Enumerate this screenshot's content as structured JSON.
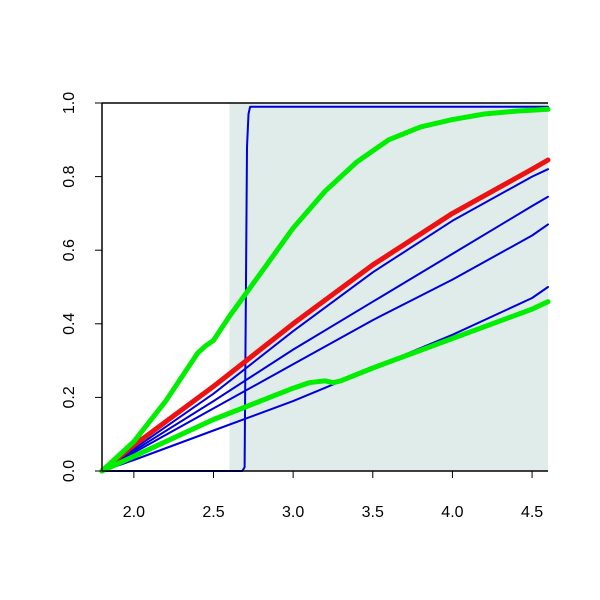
{
  "chart_data": {
    "type": "line",
    "title": "",
    "xlabel": "",
    "ylabel": "",
    "xlim": [
      1.8,
      4.6
    ],
    "ylim": [
      0.0,
      1.0
    ],
    "x_ticks": [
      "2.0",
      "2.5",
      "3.0",
      "3.5",
      "4.0",
      "4.5"
    ],
    "y_ticks": [
      "0.0",
      "0.2",
      "0.4",
      "0.6",
      "0.8",
      "1.0"
    ],
    "grid": false,
    "legend": "none",
    "shaded_region": {
      "x": [
        2.6,
        4.6
      ],
      "color": "#e0ecea"
    },
    "series": [
      {
        "color": "#0000dd",
        "width": "thin",
        "x": [
          1.8,
          2.68,
          2.695,
          2.7,
          2.71,
          2.72,
          2.73,
          4.6
        ],
        "y": [
          0.0,
          0.0,
          0.01,
          0.3,
          0.88,
          0.97,
          0.99,
          0.99
        ]
      },
      {
        "color": "#0000dd",
        "width": "thin",
        "x": [
          1.8,
          2.0,
          2.5,
          3.0,
          3.5,
          4.0,
          4.5,
          4.6
        ],
        "y": [
          0.0,
          0.06,
          0.21,
          0.38,
          0.54,
          0.68,
          0.8,
          0.82
        ]
      },
      {
        "color": "#0000dd",
        "width": "thin",
        "x": [
          1.8,
          2.0,
          2.5,
          3.0,
          3.5,
          4.0,
          4.5,
          4.6
        ],
        "y": [
          0.0,
          0.055,
          0.19,
          0.33,
          0.46,
          0.59,
          0.72,
          0.745
        ]
      },
      {
        "color": "#0000dd",
        "width": "thin",
        "x": [
          1.8,
          2.0,
          2.5,
          3.0,
          3.5,
          4.0,
          4.5,
          4.6
        ],
        "y": [
          0.0,
          0.05,
          0.17,
          0.29,
          0.41,
          0.52,
          0.64,
          0.67
        ]
      },
      {
        "color": "#0000dd",
        "width": "thin",
        "x": [
          1.8,
          2.0,
          2.5,
          3.0,
          3.5,
          4.0,
          4.5,
          4.6
        ],
        "y": [
          0.0,
          0.03,
          0.11,
          0.19,
          0.28,
          0.37,
          0.47,
          0.5
        ]
      },
      {
        "color": "#ee1111",
        "width": "thick",
        "x": [
          1.8,
          2.0,
          2.5,
          3.0,
          3.5,
          4.0,
          4.5,
          4.6
        ],
        "y": [
          0.0,
          0.07,
          0.23,
          0.4,
          0.56,
          0.7,
          0.82,
          0.845
        ]
      },
      {
        "color": "#00ee00",
        "width": "thick",
        "x": [
          1.8,
          2.0,
          2.2,
          2.4,
          2.45,
          2.5,
          2.6,
          2.8,
          3.0,
          3.2,
          3.4,
          3.6,
          3.8,
          4.0,
          4.2,
          4.4,
          4.6
        ],
        "y": [
          0.0,
          0.08,
          0.19,
          0.32,
          0.34,
          0.355,
          0.42,
          0.54,
          0.66,
          0.76,
          0.84,
          0.9,
          0.935,
          0.955,
          0.97,
          0.978,
          0.983
        ]
      },
      {
        "color": "#00ee00",
        "width": "thick",
        "x": [
          1.8,
          2.0,
          2.5,
          3.0,
          3.1,
          3.2,
          3.25,
          3.3,
          3.5,
          4.0,
          4.5,
          4.6
        ],
        "y": [
          0.0,
          0.04,
          0.14,
          0.225,
          0.24,
          0.245,
          0.24,
          0.245,
          0.28,
          0.36,
          0.44,
          0.46
        ]
      }
    ]
  }
}
